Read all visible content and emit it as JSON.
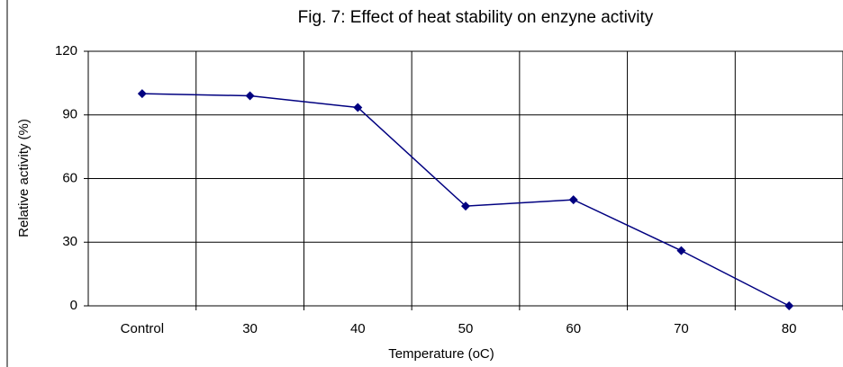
{
  "chart_data": {
    "type": "line",
    "title": "Fig. 7: Effect of heat stability on enzyne activity",
    "x_label": "Temperature (oC)",
    "y_label": "Relative activity (%)",
    "categories": [
      "Control",
      "30",
      "40",
      "50",
      "60",
      "70",
      "80"
    ],
    "series": [
      {
        "name": "Relative activity",
        "color": "#000080",
        "values": [
          100,
          99,
          93.5,
          47,
          50,
          26,
          0
        ]
      }
    ],
    "ylim": [
      0,
      120
    ],
    "yticks": [
      0,
      30,
      60,
      90,
      120
    ],
    "grid": true
  }
}
